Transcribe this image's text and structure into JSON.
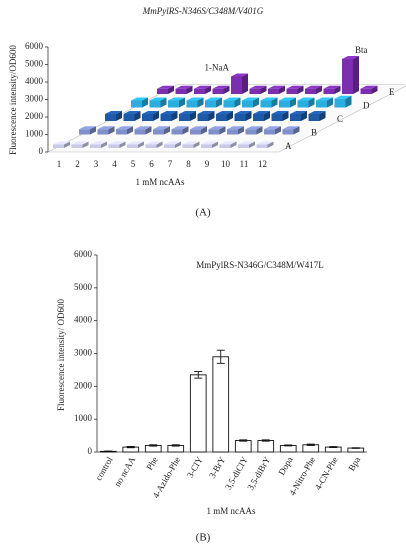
{
  "chart_data": [
    {
      "type": "bar3d",
      "title": "MmPylRS-N346S/C348M/V401G",
      "ylabel": "Fluorescence intensity/OD600",
      "xlabel": "1 mM ncAAs",
      "panel": "(A)",
      "categories": [
        "1",
        "2",
        "3",
        "4",
        "5",
        "6",
        "7",
        "8",
        "9",
        "10",
        "11",
        "12"
      ],
      "ylim": [
        0,
        6000
      ],
      "yticks": [
        0,
        1000,
        2000,
        3000,
        4000,
        5000,
        6000
      ],
      "series": [
        {
          "name": "A",
          "color": "#c9c9ea",
          "values": [
            200,
            200,
            200,
            200,
            200,
            200,
            200,
            200,
            200,
            200,
            200,
            200
          ]
        },
        {
          "name": "B",
          "color": "#7f8fc9",
          "values": [
            300,
            300,
            300,
            300,
            300,
            300,
            300,
            300,
            300,
            300,
            300,
            300
          ]
        },
        {
          "name": "C",
          "color": "#1f5aa8",
          "values": [
            400,
            400,
            400,
            400,
            400,
            400,
            400,
            400,
            400,
            400,
            400,
            400
          ]
        },
        {
          "name": "D",
          "color": "#2aaee0",
          "values": [
            400,
            400,
            400,
            400,
            400,
            400,
            400,
            400,
            400,
            400,
            400,
            500
          ]
        },
        {
          "name": "E",
          "color": "#7b2fae",
          "values": [
            300,
            300,
            300,
            300,
            1000,
            300,
            300,
            300,
            300,
            300,
            2000,
            300
          ]
        }
      ],
      "annotations": [
        {
          "text": "1-NaA",
          "series": "E",
          "category": "5"
        },
        {
          "text": "Bta",
          "series": "E",
          "category": "11"
        }
      ]
    },
    {
      "type": "bar",
      "title": "MmPylRS-N346G/C348M/W417L",
      "ylabel": "Fluorescence intensity/ OD600",
      "xlabel": "1 mM ncAAs",
      "panel": "(B)",
      "categories": [
        "control",
        "no ncAA",
        "Phe",
        "4-Azido-Phe",
        "3-ClY",
        "3-BrY",
        "3,5-diClY",
        "3,5-diBrY",
        "Dopa",
        "4-Nitro-Phe",
        "4-CN-Phe",
        "Bpa"
      ],
      "values": [
        20,
        150,
        200,
        200,
        2350,
        2900,
        350,
        350,
        200,
        220,
        150,
        120
      ],
      "errors": [
        10,
        20,
        20,
        20,
        100,
        200,
        20,
        20,
        15,
        20,
        15,
        10
      ],
      "color": "#ffffff",
      "ylim": [
        0,
        6000
      ],
      "yticks": [
        0,
        1000,
        2000,
        3000,
        4000,
        5000,
        6000
      ]
    }
  ]
}
